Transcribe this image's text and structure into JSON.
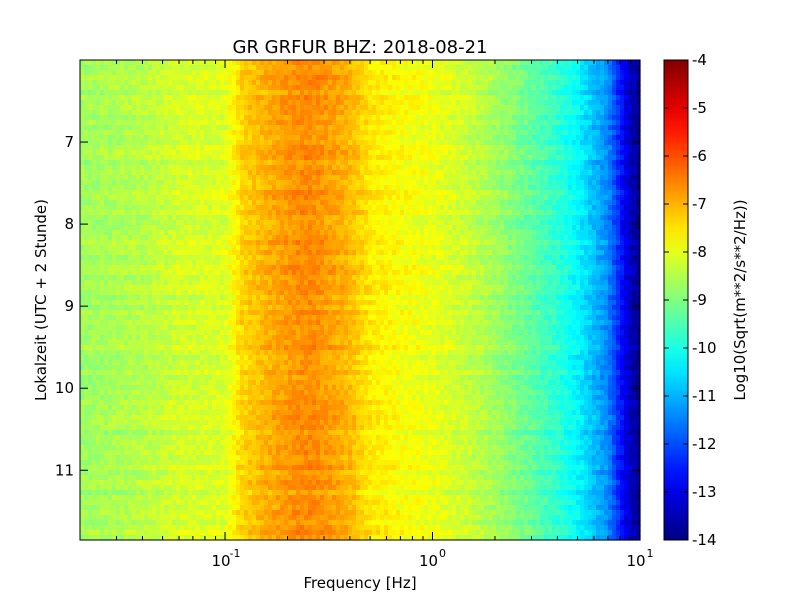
{
  "chart_data": {
    "type": "heatmap",
    "title": "GR GRFUR BHZ: 2018-08-21",
    "xlabel": "Frequency [Hz]",
    "ylabel": "Lokalzeit (UTC + 2 Stunde)",
    "colorbar_label": "Log10(Sqrt(m**2/s**2/Hz))",
    "x_scale": "log",
    "xlim": [
      0.02,
      10
    ],
    "x_ticks": [
      {
        "value": 0.1,
        "label": "10",
        "exponent": "-1"
      },
      {
        "value": 1,
        "label": "10",
        "exponent": "0"
      },
      {
        "value": 10,
        "label": "10",
        "exponent": "1"
      }
    ],
    "ylim": [
      6.0,
      11.85
    ],
    "y_inverted": true,
    "y_ticks": [
      7,
      8,
      9,
      10,
      11
    ],
    "colorbar_range": [
      -14,
      -4
    ],
    "colorbar_ticks": [
      -4,
      -5,
      -6,
      -7,
      -8,
      -9,
      -10,
      -11,
      -12,
      -13,
      -14
    ],
    "colormap": "jet",
    "spectrum_profile": {
      "frequency_hz": [
        0.02,
        0.04,
        0.06,
        0.1,
        0.12,
        0.15,
        0.2,
        0.25,
        0.3,
        0.4,
        0.5,
        0.7,
        1.0,
        1.5,
        2.0,
        3.0,
        4.0,
        5.0,
        6.0,
        7.0,
        8.0,
        9.0,
        10.0
      ],
      "log10_amplitude": [
        -8.7,
        -8.45,
        -8.2,
        -8.1,
        -7.35,
        -7.05,
        -6.75,
        -6.6,
        -6.75,
        -7.05,
        -7.55,
        -7.8,
        -7.95,
        -8.3,
        -8.65,
        -9.3,
        -9.8,
        -10.3,
        -10.9,
        -11.4,
        -12.5,
        -13.4,
        -13.9
      ]
    }
  }
}
